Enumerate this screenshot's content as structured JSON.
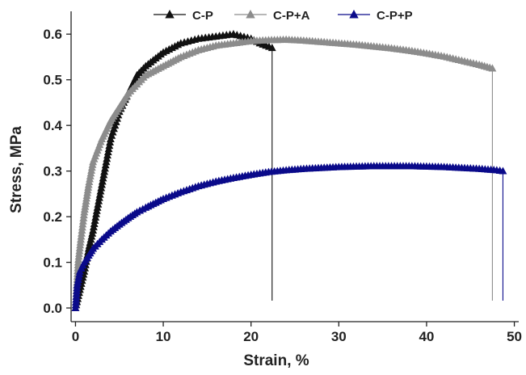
{
  "chart_data": {
    "type": "scatter",
    "xlabel": "Strain, %",
    "ylabel": "Stress, MPa",
    "xlim": [
      -0.5,
      50.5
    ],
    "ylim": [
      -0.03,
      0.65
    ],
    "xticks": [
      0,
      10,
      20,
      30,
      40,
      50
    ],
    "yticks": [
      0.0,
      0.1,
      0.2,
      0.3,
      0.4,
      0.5,
      0.6
    ],
    "xtick_labels": [
      "0",
      "10",
      "20",
      "30",
      "40",
      "50"
    ],
    "ytick_labels": [
      "0.0",
      "0.1",
      "0.2",
      "0.3",
      "0.4",
      "0.5",
      "0.6"
    ],
    "grid": false,
    "legend_position": "top-center",
    "marker": "triangle",
    "series": [
      {
        "name": "C-P",
        "color": "#111111",
        "x": [
          0,
          0.5,
          1,
          1.5,
          2,
          2.5,
          3,
          4,
          5,
          6,
          7,
          8,
          10,
          12,
          14,
          16,
          18,
          20,
          21,
          22.4
        ],
        "y": [
          0,
          0.04,
          0.08,
          0.13,
          0.17,
          0.22,
          0.27,
          0.37,
          0.43,
          0.47,
          0.51,
          0.53,
          0.56,
          0.58,
          0.59,
          0.595,
          0.6,
          0.59,
          0.58,
          0.57
        ],
        "fracture_strain": 22.4
      },
      {
        "name": "C-P+A",
        "color": "#8c8c8c",
        "x": [
          0,
          0.3,
          0.6,
          1,
          1.5,
          2,
          3,
          4,
          5,
          6,
          7,
          8,
          10,
          12,
          14,
          16,
          18,
          20,
          22,
          24,
          26,
          28,
          30,
          32,
          34,
          36,
          38,
          40,
          42,
          44,
          46,
          47.5
        ],
        "y": [
          0,
          0.1,
          0.15,
          0.21,
          0.27,
          0.32,
          0.37,
          0.41,
          0.44,
          0.47,
          0.49,
          0.51,
          0.53,
          0.55,
          0.565,
          0.575,
          0.58,
          0.585,
          0.587,
          0.588,
          0.586,
          0.583,
          0.58,
          0.577,
          0.573,
          0.569,
          0.564,
          0.558,
          0.551,
          0.542,
          0.533,
          0.525
        ],
        "fracture_strain": 47.5
      },
      {
        "name": "C-P+P",
        "color": "#0a0a8a",
        "x": [
          0,
          0.2,
          0.5,
          1,
          1.5,
          2,
          3,
          4,
          5,
          6,
          7,
          8,
          10,
          12,
          14,
          16,
          18,
          20,
          22,
          24,
          26,
          28,
          30,
          32,
          34,
          36,
          38,
          40,
          42,
          44,
          46,
          48,
          48.7
        ],
        "y": [
          0,
          0.05,
          0.08,
          0.1,
          0.115,
          0.13,
          0.15,
          0.168,
          0.183,
          0.197,
          0.21,
          0.22,
          0.239,
          0.254,
          0.267,
          0.277,
          0.285,
          0.292,
          0.298,
          0.302,
          0.305,
          0.307,
          0.309,
          0.31,
          0.311,
          0.311,
          0.311,
          0.31,
          0.309,
          0.307,
          0.305,
          0.302,
          0.3
        ],
        "fracture_strain": 48.7
      }
    ]
  }
}
